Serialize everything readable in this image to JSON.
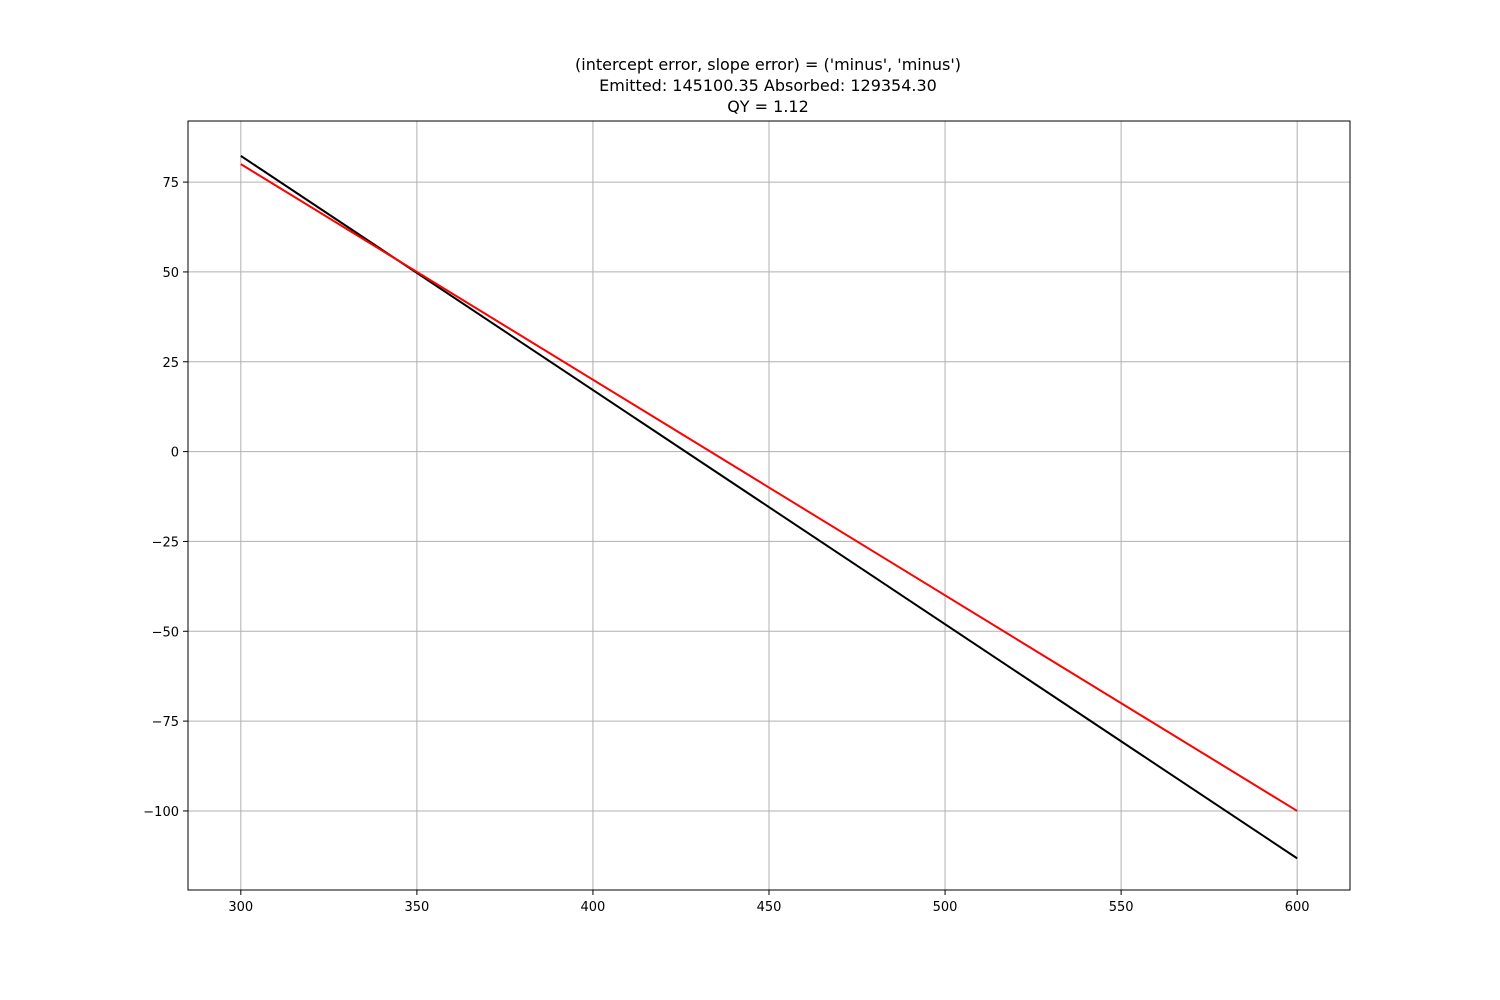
{
  "chart_data": {
    "type": "line",
    "title_lines": [
      "(intercept error, slope error) = ('minus', 'minus')",
      "Emitted: 145100.35   Absorbed: 129354.30",
      "QY = 1.12"
    ],
    "xlabel": "",
    "ylabel": "",
    "xlim": [
      285,
      615
    ],
    "ylim": [
      -122,
      92
    ],
    "xticks": [
      300,
      350,
      400,
      450,
      500,
      550,
      600
    ],
    "yticks": [
      75,
      50,
      25,
      0,
      -25,
      -50,
      -75,
      -100
    ],
    "ytick_labels": [
      "75",
      "50",
      "25",
      "0",
      "−25",
      "−50",
      "−75",
      "−100"
    ],
    "grid": true,
    "legend": "none",
    "series": [
      {
        "color": "#000000",
        "x": [
          300,
          600
        ],
        "y": [
          82.3,
          -113.2
        ]
      },
      {
        "color": "#ff0000",
        "x": [
          300,
          600
        ],
        "y": [
          80,
          -100
        ]
      }
    ]
  }
}
